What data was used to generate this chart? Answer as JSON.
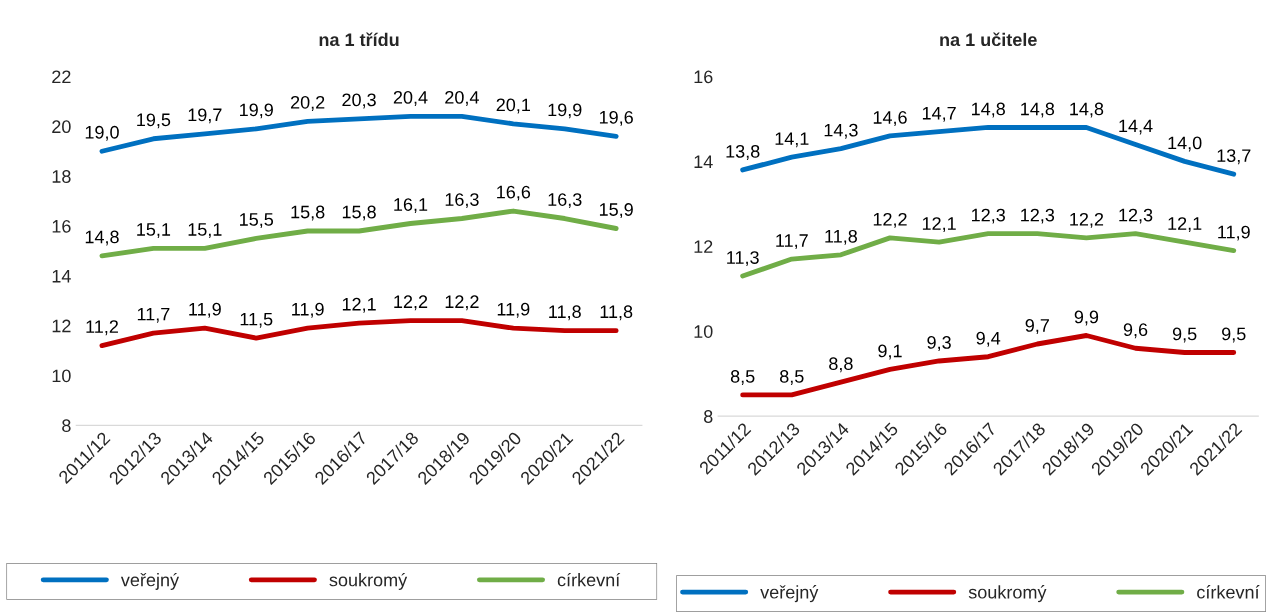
{
  "chart_data": [
    {
      "type": "line",
      "title": "na 1 třídu",
      "categories": [
        "2011/12",
        "2012/13",
        "2013/14",
        "2014/15",
        "2015/16",
        "2016/17",
        "2017/18",
        "2018/19",
        "2019/20",
        "2020/21",
        "2021/22"
      ],
      "ylim": [
        8,
        22
      ],
      "yticks": [
        8,
        10,
        12,
        14,
        16,
        18,
        20,
        22
      ],
      "grid": false,
      "legend": "bottom",
      "marker": "none",
      "line_style": "solid",
      "series": [
        {
          "name": "veřejný",
          "color": "#0070c0",
          "values": [
            19.0,
            19.5,
            19.7,
            19.9,
            20.2,
            20.3,
            20.4,
            20.4,
            20.1,
            19.9,
            19.6
          ],
          "value_labels": [
            "19,0",
            "19,5",
            "19,7",
            "19,9",
            "20,2",
            "20,3",
            "20,4",
            "20,4",
            "20,1",
            "19,9",
            "19,6"
          ]
        },
        {
          "name": "soukromý",
          "color": "#c00000",
          "values": [
            11.2,
            11.7,
            11.9,
            11.5,
            11.9,
            12.1,
            12.2,
            12.2,
            11.9,
            11.8,
            11.8
          ],
          "value_labels": [
            "11,2",
            "11,7",
            "11,9",
            "11,5",
            "11,9",
            "12,1",
            "12,2",
            "12,2",
            "11,9",
            "11,8",
            "11,8"
          ]
        },
        {
          "name": "církevní",
          "color": "#70ad47",
          "values": [
            14.8,
            15.1,
            15.1,
            15.5,
            15.8,
            15.8,
            16.1,
            16.3,
            16.6,
            16.3,
            15.9
          ],
          "value_labels": [
            "14,8",
            "15,1",
            "15,1",
            "15,5",
            "15,8",
            "15,8",
            "16,1",
            "16,3",
            "16,6",
            "16,3",
            "15,9"
          ]
        }
      ]
    },
    {
      "type": "line",
      "title": "na 1 učitele",
      "categories": [
        "2011/12",
        "2012/13",
        "2013/14",
        "2014/15",
        "2015/16",
        "2016/17",
        "2017/18",
        "2018/19",
        "2019/20",
        "2020/21",
        "2021/22"
      ],
      "ylim": [
        8,
        16
      ],
      "yticks": [
        8,
        10,
        12,
        14,
        16
      ],
      "grid": false,
      "legend": "bottom",
      "marker": "none",
      "line_style": "solid",
      "series": [
        {
          "name": "veřejný",
          "color": "#0070c0",
          "values": [
            13.8,
            14.1,
            14.3,
            14.6,
            14.7,
            14.8,
            14.8,
            14.8,
            14.4,
            14.0,
            13.7
          ],
          "value_labels": [
            "13,8",
            "14,1",
            "14,3",
            "14,6",
            "14,7",
            "14,8",
            "14,8",
            "14,8",
            "14,4",
            "14,0",
            "13,7"
          ]
        },
        {
          "name": "soukromý",
          "color": "#c00000",
          "values": [
            8.5,
            8.5,
            8.8,
            9.1,
            9.3,
            9.4,
            9.7,
            9.9,
            9.6,
            9.5,
            9.5
          ],
          "value_labels": [
            "8,5",
            "8,5",
            "8,8",
            "9,1",
            "9,3",
            "9,4",
            "9,7",
            "9,9",
            "9,6",
            "9,5",
            "9,5"
          ]
        },
        {
          "name": "církevní",
          "color": "#70ad47",
          "values": [
            11.3,
            11.7,
            11.8,
            12.2,
            12.1,
            12.3,
            12.3,
            12.2,
            12.3,
            12.1,
            11.9
          ],
          "value_labels": [
            "11,3",
            "11,7",
            "11,8",
            "12,2",
            "12,1",
            "12,3",
            "12,3",
            "12,2",
            "12,3",
            "12,1",
            "11,9"
          ]
        }
      ]
    }
  ]
}
